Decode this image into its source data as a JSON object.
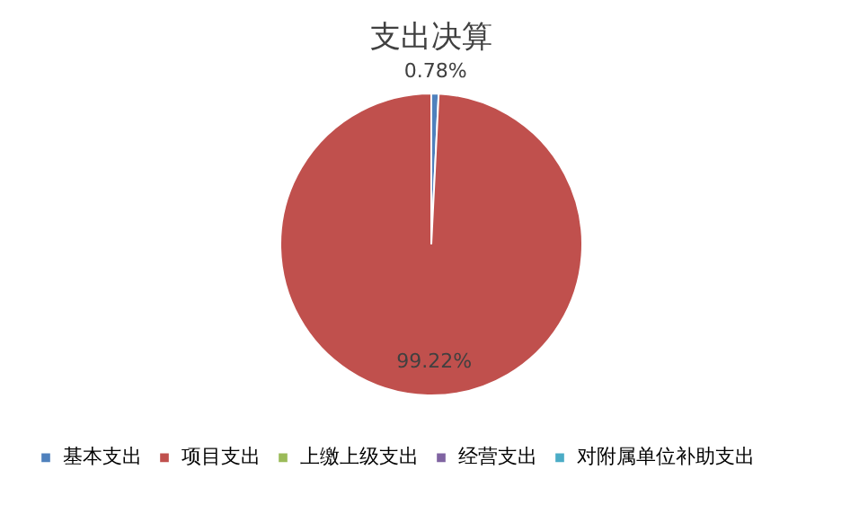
{
  "chart_data": {
    "type": "pie",
    "title": "支出决算",
    "categories": [
      "基本支出",
      "项目支出",
      "上缴上级支出",
      "经营支出",
      "对附属单位补助支出"
    ],
    "values": [
      0.78,
      99.22,
      0,
      0,
      0
    ],
    "colors": [
      "#4f81bd",
      "#c0504d",
      "#9bbb59",
      "#8064a2",
      "#4bacc6"
    ],
    "value_labels": [
      "0.78%",
      "99.22%",
      null,
      null,
      null
    ],
    "legend": "bottom"
  }
}
